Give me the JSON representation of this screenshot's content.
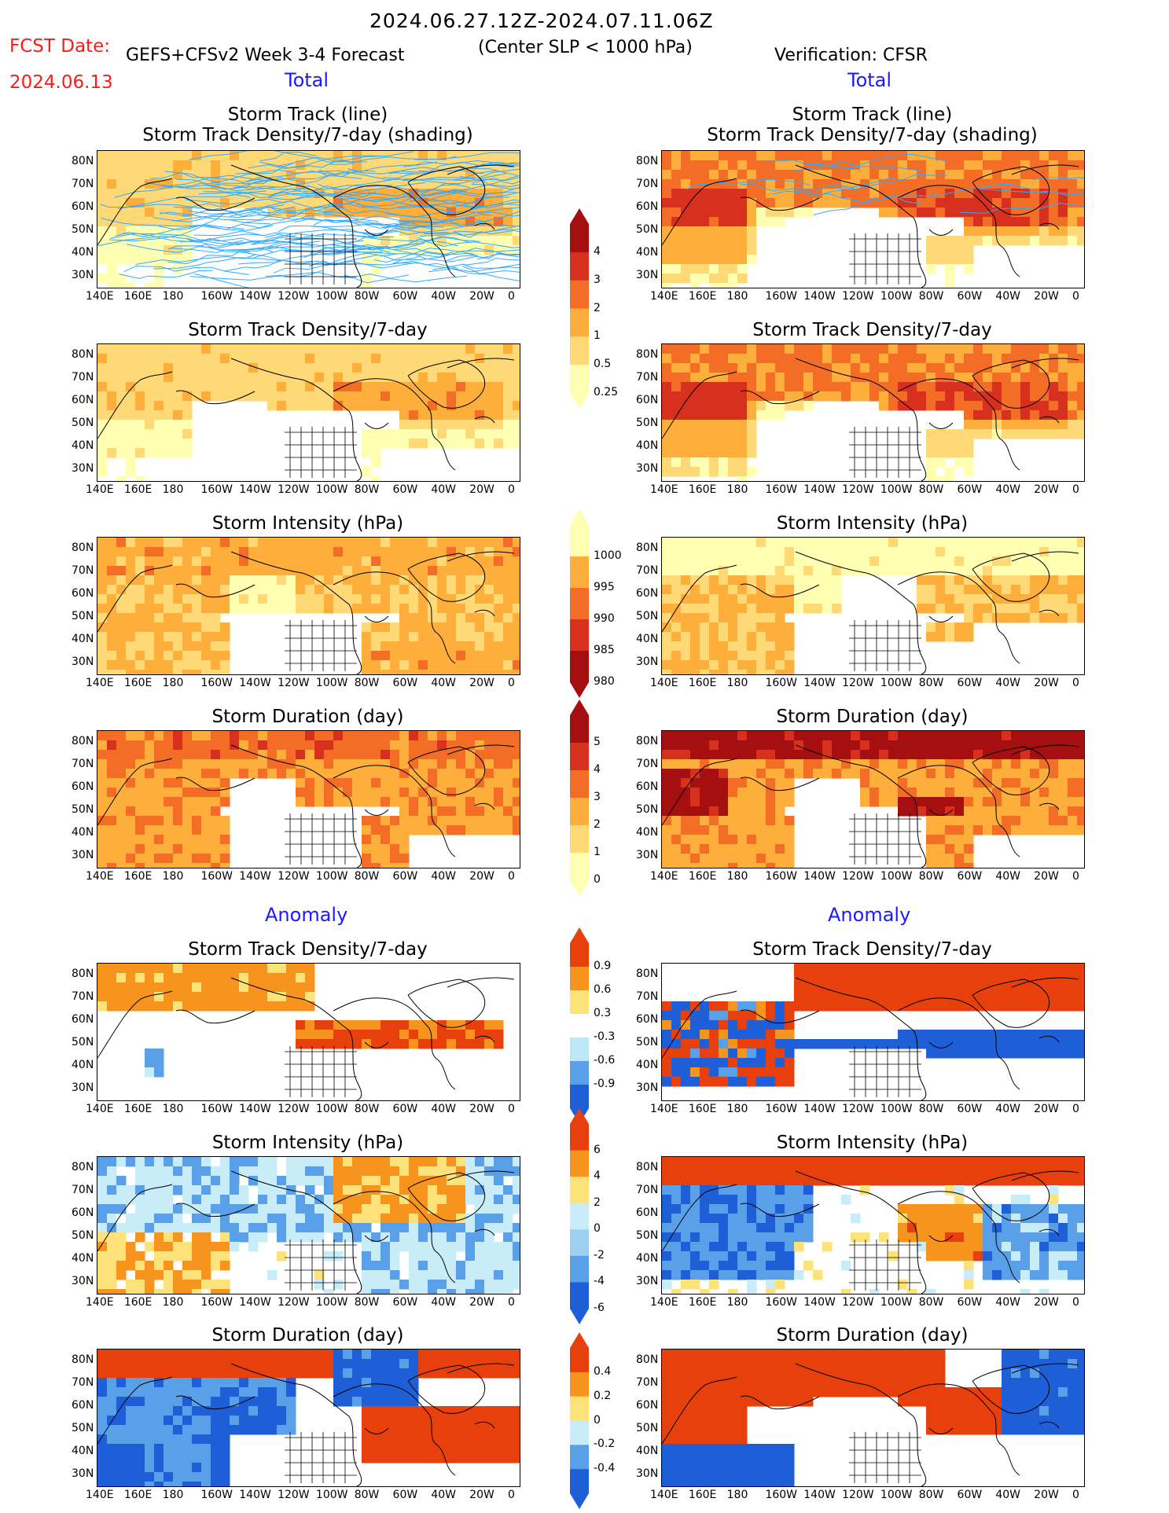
{
  "header": {
    "period": "2024.06.27.12Z-2024.07.11.06Z",
    "fcst_label": "FCST Date:",
    "fcst_date": "2024.06.13",
    "model": "GEFS+CFSv2 Week 3-4 Forecast",
    "criterion": "(Center SLP < 1000 hPa)",
    "verification": "Verification: CFSR"
  },
  "sections": {
    "total": "Total",
    "anomaly": "Anomaly"
  },
  "panel_titles": {
    "track_line": "Storm Track (line)",
    "track_shading": "Storm Track Density/7-day (shading)",
    "density": "Storm Track Density/7-day",
    "intensity": "Storm Intensity (hPa)",
    "duration": "Storm Duration (day)"
  },
  "axes": {
    "lat": [
      "80N",
      "70N",
      "60N",
      "50N",
      "40N",
      "30N"
    ],
    "lon": [
      "140E",
      "160E",
      "180",
      "160W",
      "140W",
      "120W",
      "100W",
      "80W",
      "60W",
      "40W",
      "20W",
      "0"
    ]
  },
  "colorbars": {
    "density_total": {
      "labels": [
        "4",
        "3",
        "2",
        "1",
        "0.5",
        "0.25"
      ],
      "colors": [
        "#a50f0f",
        "#d7301f",
        "#f46d26",
        "#fdae3b",
        "#fed976",
        "#ffffb2"
      ]
    },
    "intensity_total": {
      "labels": [
        "1000",
        "995",
        "990",
        "985",
        "980"
      ],
      "colors": [
        "#ffffb2",
        "#fdae3b",
        "#f46d26",
        "#d7301f",
        "#a50f0f"
      ]
    },
    "duration_total": {
      "labels": [
        "5",
        "4",
        "3",
        "2",
        "1",
        "0"
      ],
      "colors": [
        "#a50f0f",
        "#d7301f",
        "#f46d26",
        "#fdae3b",
        "#fed976",
        "#ffffb2"
      ]
    },
    "density_anom": {
      "labels": [
        "0.9",
        "0.6",
        "0.3",
        "-0.3",
        "-0.6",
        "-0.9"
      ],
      "colors": [
        "#e8400c",
        "#f7941d",
        "#fde27a",
        "#ffffff",
        "#bde8f8",
        "#5aa0e8",
        "#1e5fd8"
      ]
    },
    "intensity_anom": {
      "labels": [
        "6",
        "4",
        "2",
        "0",
        "-2",
        "-4",
        "-6"
      ],
      "colors": [
        "#e8400c",
        "#f7941d",
        "#fde27a",
        "#c8ecf8",
        "#9ed0f4",
        "#5aa0e8",
        "#1e5fd8"
      ]
    },
    "duration_anom": {
      "labels": [
        "0.4",
        "0.2",
        "0",
        "-0.2",
        "-0.4"
      ],
      "colors": [
        "#e8400c",
        "#f7941d",
        "#fde27a",
        "#c8ecf8",
        "#5aa0e8",
        "#1e5fd8"
      ]
    }
  },
  "colors": {
    "track_line": "#33aaff",
    "land_border": "#000000"
  }
}
